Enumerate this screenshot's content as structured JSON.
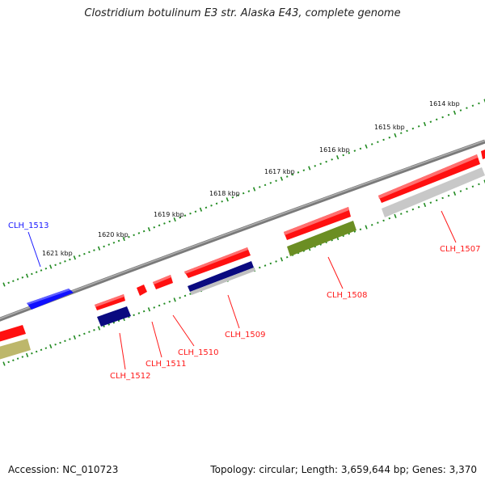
{
  "title": "Clostridium botulinum E3 str. Alaska E43, complete genome",
  "accession": "Accession: NC_010723",
  "summary": "Topology: circular; Length: 3,659,644 bp; Genes: 3,370",
  "colors": {
    "red": "#ff1a1a",
    "blue": "#1a1aff",
    "navy": "#0a0a80",
    "olive": "#6b8e23",
    "khaki": "#bdb76b",
    "gray": "#c8c8c8",
    "backbone": "#808080",
    "tick": "#228b22"
  },
  "scale_labels": [
    "1614 kbp",
    "1615 kbp",
    "1616 kbp",
    "1617 kbp",
    "1618 kbp",
    "1619 kbp",
    "1620 kbp",
    "1621 kbp"
  ],
  "gene_labels": [
    {
      "text": "CLH_1513",
      "color": "blue"
    },
    {
      "text": "CLH_1512",
      "color": "red"
    },
    {
      "text": "CLH_1511",
      "color": "red"
    },
    {
      "text": "CLH_1510",
      "color": "red"
    },
    {
      "text": "CLH_1509",
      "color": "red"
    },
    {
      "text": "CLH_1508",
      "color": "red"
    },
    {
      "text": "CLH_1507",
      "color": "red"
    }
  ]
}
